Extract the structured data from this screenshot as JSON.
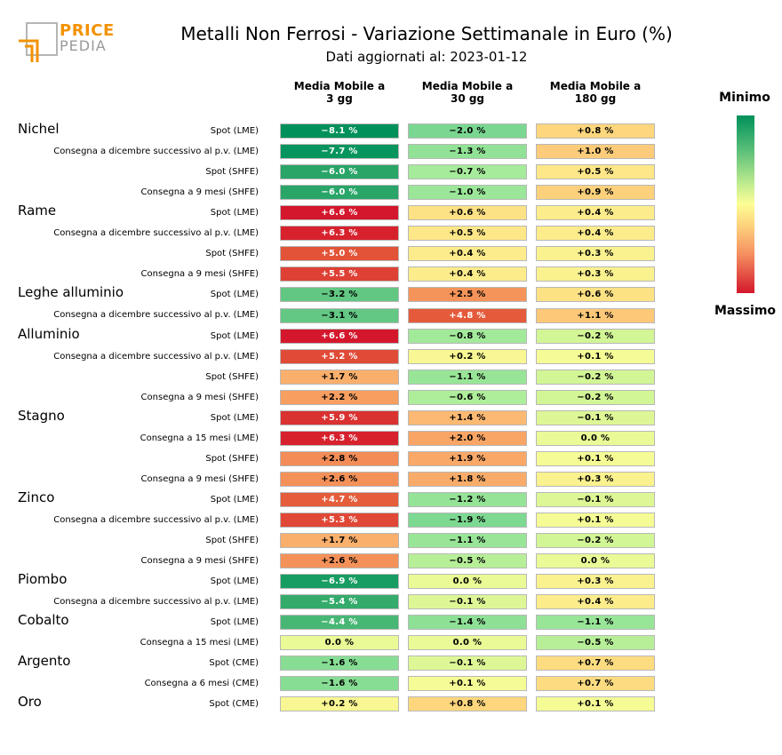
{
  "logo": {
    "line1": "PRICE",
    "line2": "PEDIA"
  },
  "header": {
    "title": "Metalli Non Ferrosi - Variazione Settimanale in Euro (%)",
    "subtitle": "Dati aggiornati al: 2023-01-12"
  },
  "legend": {
    "top_label": "Minimo",
    "bottom_label": "Massimo",
    "scale_min_color": "#00915a",
    "scale_mid_color": "#fdfd95",
    "scale_max_color": "#d4172c"
  },
  "chart_data": {
    "type": "table",
    "title": "Metalli Non Ferrosi - Variazione Settimanale in Euro (%)",
    "columns": [
      "Media Mobile a\n3 gg",
      "Media Mobile a\n30 gg",
      "Media Mobile a\n180 gg"
    ],
    "groups": [
      {
        "name": "Nichel",
        "rows": [
          {
            "label": "Spot (LME)",
            "values": [
              -8.1,
              -2.0,
              0.8
            ]
          },
          {
            "label": "Consegna a dicembre successivo al p.v. (LME)",
            "values": [
              -7.7,
              -1.3,
              1.0
            ]
          },
          {
            "label": "Spot (SHFE)",
            "values": [
              -6.0,
              -0.7,
              0.5
            ]
          },
          {
            "label": "Consegna a 9 mesi (SHFE)",
            "values": [
              -6.0,
              -1.0,
              0.9
            ]
          }
        ]
      },
      {
        "name": "Rame",
        "rows": [
          {
            "label": "Spot (LME)",
            "values": [
              6.6,
              0.6,
              0.4
            ]
          },
          {
            "label": "Consegna a dicembre successivo al p.v. (LME)",
            "values": [
              6.3,
              0.5,
              0.4
            ]
          },
          {
            "label": "Spot (SHFE)",
            "values": [
              5.0,
              0.4,
              0.3
            ]
          },
          {
            "label": "Consegna a 9 mesi (SHFE)",
            "values": [
              5.5,
              0.4,
              0.3
            ]
          }
        ]
      },
      {
        "name": "Leghe alluminio",
        "rows": [
          {
            "label": "Spot (LME)",
            "values": [
              -3.2,
              2.5,
              0.6
            ]
          },
          {
            "label": "Consegna a dicembre successivo al p.v. (LME)",
            "values": [
              -3.1,
              4.8,
              1.1
            ]
          }
        ]
      },
      {
        "name": "Alluminio",
        "rows": [
          {
            "label": "Spot (LME)",
            "values": [
              6.6,
              -0.8,
              -0.2
            ]
          },
          {
            "label": "Consegna a dicembre successivo al p.v. (LME)",
            "values": [
              5.2,
              0.2,
              0.1
            ]
          },
          {
            "label": "Spot (SHFE)",
            "values": [
              1.7,
              -1.1,
              -0.2
            ]
          },
          {
            "label": "Consegna a 9 mesi (SHFE)",
            "values": [
              2.2,
              -0.6,
              -0.2
            ]
          }
        ]
      },
      {
        "name": "Stagno",
        "rows": [
          {
            "label": "Spot (LME)",
            "values": [
              5.9,
              1.4,
              -0.1
            ]
          },
          {
            "label": "Consegna a 15 mesi (LME)",
            "values": [
              6.3,
              2.0,
              0.0
            ]
          },
          {
            "label": "Spot (SHFE)",
            "values": [
              2.8,
              1.9,
              0.1
            ]
          },
          {
            "label": "Consegna a 9 mesi (SHFE)",
            "values": [
              2.6,
              1.8,
              0.3
            ]
          }
        ]
      },
      {
        "name": "Zinco",
        "rows": [
          {
            "label": "Spot (LME)",
            "values": [
              4.7,
              -1.2,
              -0.1
            ]
          },
          {
            "label": "Consegna a dicembre successivo al p.v. (LME)",
            "values": [
              5.3,
              -1.9,
              0.1
            ]
          },
          {
            "label": "Spot (SHFE)",
            "values": [
              1.7,
              -1.1,
              -0.2
            ]
          },
          {
            "label": "Consegna a 9 mesi (SHFE)",
            "values": [
              2.6,
              -0.5,
              0.0
            ]
          }
        ]
      },
      {
        "name": "Piombo",
        "rows": [
          {
            "label": "Spot (LME)",
            "values": [
              -6.9,
              0.0,
              0.3
            ]
          },
          {
            "label": "Consegna a dicembre successivo al p.v. (LME)",
            "values": [
              -5.4,
              -0.1,
              0.4
            ]
          }
        ]
      },
      {
        "name": "Cobalto",
        "rows": [
          {
            "label": "Spot (LME)",
            "values": [
              -4.4,
              -1.4,
              -1.1
            ]
          },
          {
            "label": "Consegna a 15 mesi (LME)",
            "values": [
              0.0,
              0.0,
              -0.5
            ]
          }
        ]
      },
      {
        "name": "Argento",
        "rows": [
          {
            "label": "Spot (CME)",
            "values": [
              -1.6,
              -0.1,
              0.7
            ]
          },
          {
            "label": "Consegna a 6 mesi (CME)",
            "values": [
              -1.6,
              0.1,
              0.7
            ]
          }
        ]
      },
      {
        "name": "Oro",
        "rows": [
          {
            "label": "Spot (CME)",
            "values": [
              0.2,
              0.8,
              0.1
            ]
          }
        ]
      }
    ]
  }
}
